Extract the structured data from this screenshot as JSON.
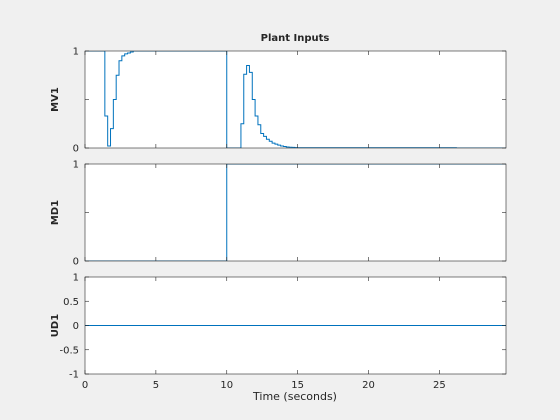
{
  "chart_data": {
    "type": "line",
    "title": "Plant Inputs",
    "xlabel": "Time (seconds)",
    "xlim": [
      0,
      29.7
    ],
    "xticks": [
      0,
      5,
      10,
      15,
      20,
      25
    ],
    "line_color": "#0072BD",
    "grid": false,
    "subplots": [
      {
        "name": "MV1",
        "ylabel": "MV1",
        "ylim": [
          0,
          1
        ],
        "yticks": [
          0,
          0.5,
          1
        ],
        "yticklabels": [
          "0",
          "",
          "1"
        ],
        "step": true,
        "x": [
          0,
          1.4,
          1.4,
          1.6,
          1.6,
          1.8,
          1.8,
          2.0,
          2.0,
          2.2,
          2.2,
          2.4,
          2.4,
          2.6,
          2.6,
          2.8,
          2.8,
          3.0,
          3.0,
          3.2,
          3.2,
          3.4,
          3.4,
          10.0,
          10.0,
          11.0,
          11.0,
          11.2,
          11.2,
          11.4,
          11.4,
          11.6,
          11.6,
          11.8,
          11.8,
          12.0,
          12.0,
          12.2,
          12.2,
          12.4,
          12.4,
          12.6,
          12.6,
          12.8,
          12.8,
          13.0,
          13.0,
          13.2,
          13.2,
          13.4,
          13.4,
          13.6,
          13.6,
          13.8,
          13.8,
          14.0,
          14.0,
          14.2,
          14.2,
          14.4,
          14.4,
          14.6,
          14.6,
          14.8,
          14.8,
          15.0,
          15.0,
          26.2,
          26.2,
          29.7
        ],
        "y": [
          1,
          1,
          0.33,
          0.33,
          0.02,
          0.02,
          0.2,
          0.2,
          0.5,
          0.5,
          0.75,
          0.75,
          0.9,
          0.9,
          0.95,
          0.95,
          0.97,
          0.97,
          0.98,
          0.98,
          0.99,
          0.99,
          1,
          1,
          0,
          0,
          0.25,
          0.25,
          0.76,
          0.76,
          0.85,
          0.85,
          0.78,
          0.78,
          0.5,
          0.5,
          0.33,
          0.33,
          0.24,
          0.24,
          0.15,
          0.15,
          0.12,
          0.12,
          0.09,
          0.09,
          0.07,
          0.07,
          0.05,
          0.05,
          0.04,
          0.04,
          0.03,
          0.03,
          0.02,
          0.02,
          0.015,
          0.015,
          0.01,
          0.01,
          0.008,
          0.008,
          0.006,
          0.006,
          0.004,
          0.004,
          0.003,
          0.003,
          0,
          0
        ]
      },
      {
        "name": "MD1",
        "ylabel": "MD1",
        "ylim": [
          0,
          1
        ],
        "yticks": [
          0,
          0.5,
          1
        ],
        "yticklabels": [
          "0",
          "",
          "1"
        ],
        "step": true,
        "x": [
          0,
          10,
          10,
          29.7
        ],
        "y": [
          0,
          0,
          1,
          1
        ]
      },
      {
        "name": "UD1",
        "ylabel": "UD1",
        "ylim": [
          -1,
          1
        ],
        "yticks": [
          -1,
          -0.5,
          0,
          0.5,
          1
        ],
        "yticklabels": [
          "-1",
          "-0.5",
          "0",
          "0.5",
          "1"
        ],
        "step": true,
        "x": [
          0,
          29.7
        ],
        "y": [
          0,
          0
        ]
      }
    ]
  }
}
